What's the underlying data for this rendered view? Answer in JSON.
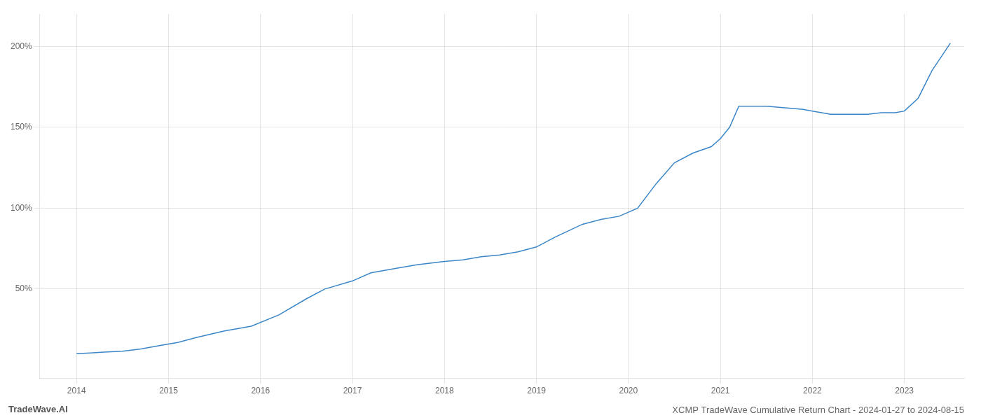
{
  "chart_data": {
    "type": "line",
    "title": "XCMP TradeWave Cumulative Return Chart - 2024-01-27 to 2024-08-15",
    "annotations": [
      "TradeWave.AI"
    ],
    "color": "#3a86c8",
    "grid": true,
    "x": [
      2014.0,
      2014.15,
      2014.3,
      2014.5,
      2014.7,
      2014.9,
      2015.1,
      2015.3,
      2015.6,
      2015.9,
      2016.2,
      2016.5,
      2016.7,
      2017.0,
      2017.2,
      2017.5,
      2017.7,
      2018.0,
      2018.2,
      2018.4,
      2018.6,
      2018.8,
      2019.0,
      2019.2,
      2019.5,
      2019.7,
      2019.9,
      2020.1,
      2020.3,
      2020.5,
      2020.7,
      2020.9,
      2021.0,
      2021.1,
      2021.2,
      2021.5,
      2021.7,
      2021.9,
      2022.0,
      2022.2,
      2022.4,
      2022.6,
      2022.75,
      2022.9,
      2023.0,
      2023.15,
      2023.3,
      2023.5
    ],
    "values": [
      10,
      10.5,
      11,
      11.5,
      13,
      15,
      17,
      20,
      24,
      27,
      34,
      44,
      50,
      55,
      60,
      63,
      65,
      67,
      68,
      70,
      71,
      73,
      76,
      82,
      90,
      93,
      95,
      100,
      115,
      128,
      134,
      138,
      143,
      150,
      163,
      163,
      162,
      161,
      160,
      158,
      158,
      158,
      159,
      159,
      160,
      168,
      185,
      202
    ],
    "xlim": [
      2013.6,
      2023.65
    ],
    "xticks": [
      2014,
      2015,
      2016,
      2017,
      2018,
      2019,
      2020,
      2021,
      2022,
      2023
    ],
    "ylim": [
      -5,
      220
    ],
    "yticks": [
      {
        "value": 50,
        "label": "50%"
      },
      {
        "value": 100,
        "label": "100%"
      },
      {
        "value": 150,
        "label": "150%"
      },
      {
        "value": 200,
        "label": "200%"
      }
    ]
  }
}
